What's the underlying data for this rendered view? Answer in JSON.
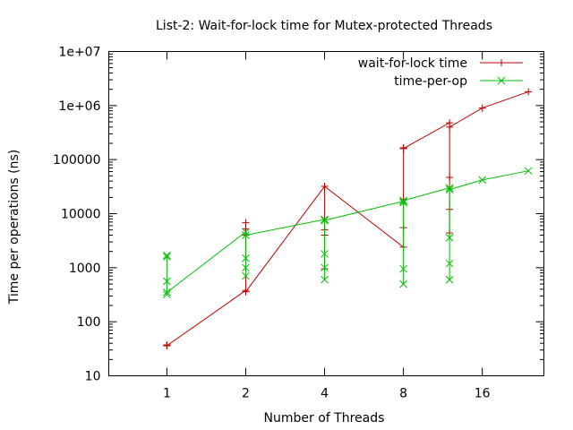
{
  "chart_data": {
    "type": "line",
    "title": "List-2: Wait-for-lock time for Mutex-protected Threads",
    "xlabel": "Number of Threads",
    "ylabel": "Time per operations (ns)",
    "x_scale": "log2",
    "y_scale": "log10",
    "xlim": [
      0.6,
      27.5
    ],
    "ylim": [
      10,
      10000000
    ],
    "x_ticks": [
      {
        "value": 1,
        "label": "1"
      },
      {
        "value": 2,
        "label": "2"
      },
      {
        "value": 4,
        "label": "4"
      },
      {
        "value": 8,
        "label": "8"
      },
      {
        "value": 16,
        "label": "16"
      }
    ],
    "y_ticks": [
      {
        "value": 10,
        "label": "10"
      },
      {
        "value": 100,
        "label": "100"
      },
      {
        "value": 1000,
        "label": "1000"
      },
      {
        "value": 10000,
        "label": "10000"
      },
      {
        "value": 100000,
        "label": "100000"
      },
      {
        "value": 1000000,
        "label": "1e+06"
      },
      {
        "value": 10000000,
        "label": "1e+07"
      }
    ],
    "grid": false,
    "legend_position": "top-right",
    "series": [
      {
        "name": "wait-for-lock time",
        "color": "#c00000",
        "marker": "plus",
        "points": [
          [
            1,
            37
          ],
          [
            1,
            37
          ],
          [
            1,
            36
          ],
          [
            1,
            37
          ],
          [
            1,
            36
          ],
          [
            2,
            380
          ],
          [
            2,
            6800
          ],
          [
            2,
            5200
          ],
          [
            2,
            4000
          ],
          [
            2,
            360
          ],
          [
            4,
            32000
          ],
          [
            4,
            5000
          ],
          [
            4,
            4000
          ],
          [
            4,
            950
          ],
          [
            4,
            32000
          ],
          [
            8,
            2400
          ],
          [
            8,
            18000
          ],
          [
            8,
            165000
          ],
          [
            8,
            5500
          ],
          [
            8,
            160000
          ],
          [
            12,
            480000
          ],
          [
            12,
            47000
          ],
          [
            12,
            12000
          ],
          [
            12,
            4400
          ],
          [
            12,
            400000
          ],
          [
            16,
            900000
          ],
          [
            24,
            1800000
          ]
        ]
      },
      {
        "name": "time-per-op",
        "color": "#00c000",
        "marker": "x",
        "points": [
          [
            1,
            1600
          ],
          [
            1,
            560
          ],
          [
            1,
            320
          ],
          [
            1,
            1700
          ],
          [
            1,
            350
          ],
          [
            2,
            4600
          ],
          [
            2,
            1500
          ],
          [
            2,
            700
          ],
          [
            2,
            1000
          ],
          [
            2,
            4000
          ],
          [
            4,
            7800
          ],
          [
            4,
            1800
          ],
          [
            4,
            1000
          ],
          [
            4,
            600
          ],
          [
            4,
            7500
          ],
          [
            8,
            17000
          ],
          [
            8,
            950
          ],
          [
            8,
            500
          ],
          [
            8,
            16000
          ],
          [
            8,
            17500
          ],
          [
            12,
            30000
          ],
          [
            12,
            3600
          ],
          [
            12,
            1200
          ],
          [
            12,
            600
          ],
          [
            12,
            28000
          ],
          [
            16,
            42000
          ],
          [
            24,
            62000
          ]
        ]
      }
    ]
  }
}
